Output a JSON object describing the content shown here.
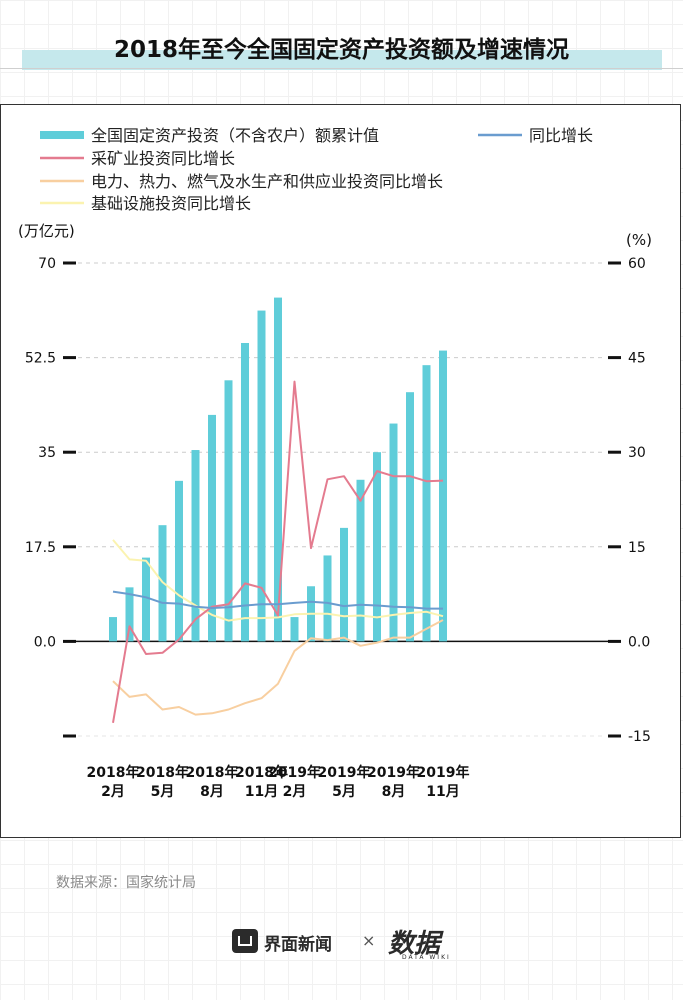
{
  "title": "2018年至今全国固定资产投资额及增速情况",
  "source": "数据来源：国家统计局",
  "footer": {
    "brand": "界面新闻",
    "separator": "×",
    "partner": "数据",
    "partner_sub": "DATA WIKI"
  },
  "chart_data": {
    "type": "bar",
    "y_left_label": "(万亿元)",
    "y_right_label": "(%)",
    "y_left_ticks": [
      "70",
      "52.5",
      "35",
      "17.5",
      "0.0"
    ],
    "y_right_ticks": [
      "60",
      "45",
      "30",
      "15",
      "0.0",
      "-15"
    ],
    "ylim_left": [
      -17.5,
      70
    ],
    "ylim_right": [
      -15,
      60
    ],
    "x_tick_labels": [
      [
        "2018年",
        "2月"
      ],
      [
        "2018年",
        "5月"
      ],
      [
        "2018年",
        "8月"
      ],
      [
        "2018年",
        "11月"
      ],
      [
        "2019年",
        "2月"
      ],
      [
        "2019年",
        "5月"
      ],
      [
        "2019年",
        "8月"
      ],
      [
        "2019年",
        "11月"
      ]
    ],
    "months": [
      "2018-02",
      "2018-03",
      "2018-04",
      "2018-05",
      "2018-06",
      "2018-07",
      "2018-08",
      "2018-09",
      "2018-10",
      "2018-11",
      "2018-12",
      "2019-02",
      "2019-03",
      "2019-04",
      "2019-05",
      "2019-06",
      "2019-07",
      "2019-08",
      "2019-09",
      "2019-10",
      "2019-11"
    ],
    "legend_position": "top",
    "grid": true,
    "series": [
      {
        "name": "全国固定资产投资（不含农户）额累计值",
        "kind": "bar",
        "axis": "left",
        "color": "#5fcdd9",
        "values": [
          4.5,
          10.0,
          15.5,
          21.5,
          29.7,
          35.4,
          41.9,
          48.3,
          55.2,
          61.2,
          63.6,
          4.5,
          10.2,
          15.9,
          21.0,
          29.9,
          35.0,
          40.3,
          46.1,
          51.1,
          53.8
        ]
      },
      {
        "name": "同比增长",
        "kind": "line",
        "axis": "right",
        "color": "#6a9ccf",
        "values": [
          7.9,
          7.5,
          7.0,
          6.1,
          6.0,
          5.5,
          5.3,
          5.4,
          5.7,
          5.9,
          5.9,
          6.1,
          6.3,
          6.1,
          5.6,
          5.8,
          5.7,
          5.5,
          5.4,
          5.2,
          5.2
        ]
      },
      {
        "name": "采矿业投资同比增长",
        "kind": "line",
        "axis": "right",
        "color": "#e47b8f",
        "values": [
          -12.9,
          2.4,
          -2.0,
          -1.8,
          0.3,
          3.5,
          5.5,
          5.9,
          9.2,
          8.5,
          4.1,
          41.2,
          14.8,
          25.7,
          26.2,
          22.3,
          27.0,
          26.2,
          26.2,
          25.4,
          25.5
        ]
      },
      {
        "name": "电力、热力、燃气及水生产和供应业投资同比增长",
        "kind": "line",
        "axis": "right",
        "color": "#f8cfa0",
        "values": [
          -6.3,
          -8.8,
          -8.4,
          -10.8,
          -10.4,
          -11.6,
          -11.4,
          -10.8,
          -9.8,
          -9.0,
          -6.7,
          -1.5,
          0.5,
          0.2,
          0.6,
          -0.7,
          -0.2,
          0.6,
          0.6,
          2.0,
          3.4
        ]
      },
      {
        "name": "基础设施投资同比增长",
        "kind": "line",
        "axis": "right",
        "color": "#fbf3b0",
        "values": [
          16.1,
          13.0,
          12.8,
          9.4,
          7.3,
          5.7,
          4.2,
          3.3,
          3.7,
          3.7,
          3.8,
          4.3,
          4.4,
          4.4,
          4.0,
          4.1,
          3.8,
          4.2,
          4.5,
          4.7,
          4.0
        ]
      }
    ]
  }
}
